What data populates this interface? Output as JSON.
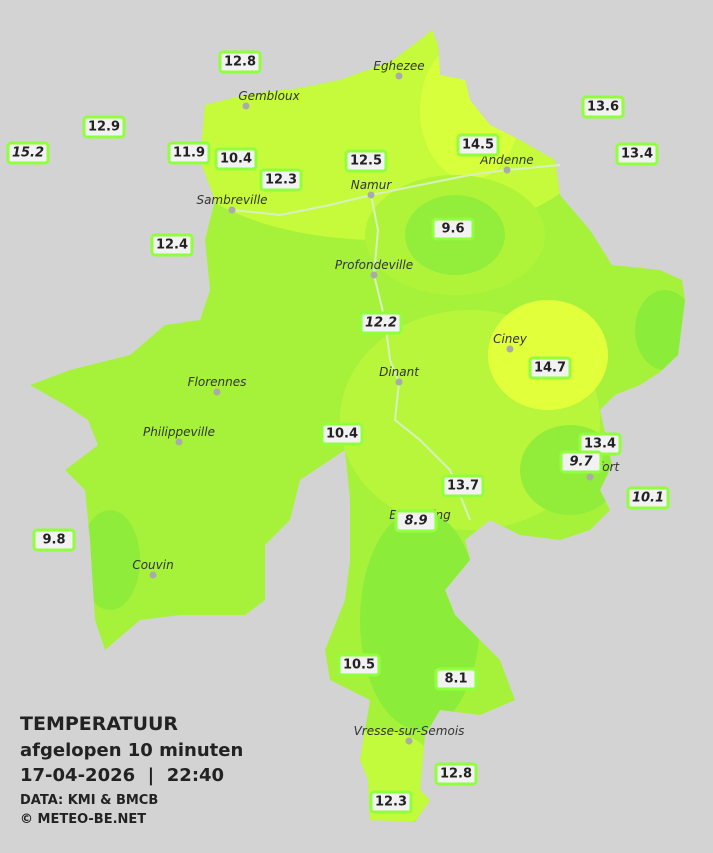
{
  "legend": {
    "title": "TEMPERATUUR",
    "subtitle": "afgelopen 10 minuten",
    "datetime": "17-04-2026  |  22:40",
    "source": "DATA: KMI & BMCB",
    "credit": "© METEO-BE.NET"
  },
  "cities": [
    "Eghezee",
    "Gembloux",
    "Andenne",
    "Namur",
    "Sambreville",
    "Profondeville",
    "Ciney",
    "Florennes",
    "Dinant",
    "Philippeville",
    "Rochefort",
    "Beauraing",
    "Couvin",
    "Vresse-sur-Semois"
  ],
  "stations": [
    {
      "value": "12.8"
    },
    {
      "value": "12.9"
    },
    {
      "value": "15.2",
      "italic": true
    },
    {
      "value": "11.9"
    },
    {
      "value": "10.4"
    },
    {
      "value": "12.3"
    },
    {
      "value": "12.5"
    },
    {
      "value": "14.5"
    },
    {
      "value": "13.6"
    },
    {
      "value": "13.4"
    },
    {
      "value": "12.4"
    },
    {
      "value": "9.6"
    },
    {
      "value": "12.2",
      "italic": true
    },
    {
      "value": "14.7"
    },
    {
      "value": "10.4"
    },
    {
      "value": "13.4"
    },
    {
      "value": "9.7",
      "italic": true
    },
    {
      "value": "13.7"
    },
    {
      "value": "10.1",
      "italic": true
    },
    {
      "value": "8.9",
      "italic": true
    },
    {
      "value": "9.8"
    },
    {
      "value": "10.5"
    },
    {
      "value": "8.1"
    },
    {
      "value": "12.8"
    },
    {
      "value": "12.3"
    }
  ]
}
